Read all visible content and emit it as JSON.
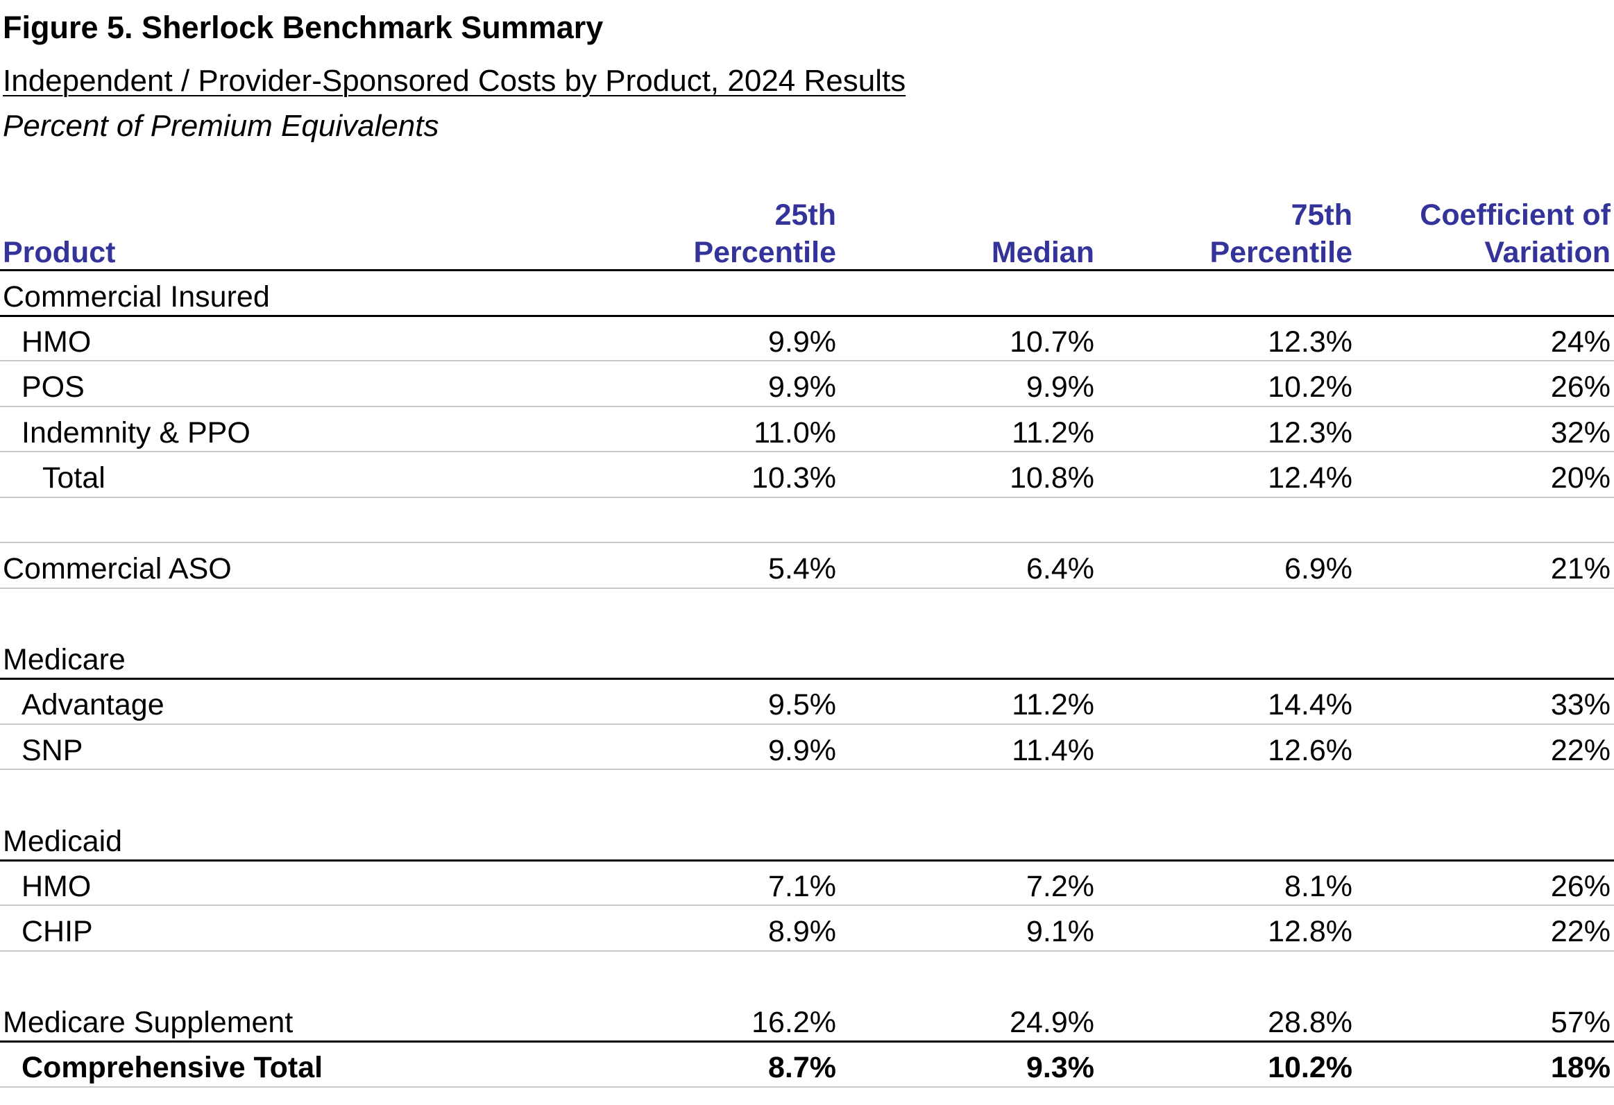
{
  "figure": {
    "title": "Figure 5. Sherlock Benchmark Summary",
    "subtitle": "Independent / Provider-Sponsored Costs by Product, 2024 Results",
    "units": "Percent of Premium Equivalents"
  },
  "table": {
    "columns": {
      "product": "Product",
      "p25_line1": "25th",
      "p25_line2": "Percentile",
      "median": "Median",
      "p75_line1": "75th",
      "p75_line2": "Percentile",
      "cv_line1": "Coefficient of",
      "cv_line2": "Variation"
    },
    "rows": [
      {
        "label": "Commercial Insured",
        "p25": "",
        "median": "",
        "p75": "",
        "cv": ""
      },
      {
        "label": "HMO",
        "p25": "9.9%",
        "median": "10.7%",
        "p75": "12.3%",
        "cv": "24%"
      },
      {
        "label": "POS",
        "p25": "9.9%",
        "median": "9.9%",
        "p75": "10.2%",
        "cv": "26%"
      },
      {
        "label": "Indemnity & PPO",
        "p25": "11.0%",
        "median": "11.2%",
        "p75": "12.3%",
        "cv": "32%"
      },
      {
        "label": "Total",
        "p25": "10.3%",
        "median": "10.8%",
        "p75": "12.4%",
        "cv": "20%"
      },
      {
        "label": "",
        "p25": "",
        "median": "",
        "p75": "",
        "cv": ""
      },
      {
        "label": "Commercial ASO",
        "p25": "5.4%",
        "median": "6.4%",
        "p75": "6.9%",
        "cv": "21%"
      },
      {
        "label": "",
        "p25": "",
        "median": "",
        "p75": "",
        "cv": ""
      },
      {
        "label": "Medicare",
        "p25": "",
        "median": "",
        "p75": "",
        "cv": ""
      },
      {
        "label": "Advantage",
        "p25": "9.5%",
        "median": "11.2%",
        "p75": "14.4%",
        "cv": "33%"
      },
      {
        "label": "SNP",
        "p25": "9.9%",
        "median": "11.4%",
        "p75": "12.6%",
        "cv": "22%"
      },
      {
        "label": "",
        "p25": "",
        "median": "",
        "p75": "",
        "cv": ""
      },
      {
        "label": "Medicaid",
        "p25": "",
        "median": "",
        "p75": "",
        "cv": ""
      },
      {
        "label": "HMO",
        "p25": "7.1%",
        "median": "7.2%",
        "p75": "8.1%",
        "cv": "26%"
      },
      {
        "label": "CHIP",
        "p25": "8.9%",
        "median": "9.1%",
        "p75": "12.8%",
        "cv": "22%"
      },
      {
        "label": "",
        "p25": "",
        "median": "",
        "p75": "",
        "cv": ""
      },
      {
        "label": "Medicare Supplement",
        "p25": "16.2%",
        "median": "24.9%",
        "p75": "28.8%",
        "cv": "57%"
      },
      {
        "label": "Comprehensive Total",
        "p25": "8.7%",
        "median": "9.3%",
        "p75": "10.2%",
        "cv": "18%"
      }
    ]
  },
  "colors": {
    "header_text": "#33339a",
    "rule_thick": "#000000",
    "rule_thin": "#c8c8c8"
  }
}
